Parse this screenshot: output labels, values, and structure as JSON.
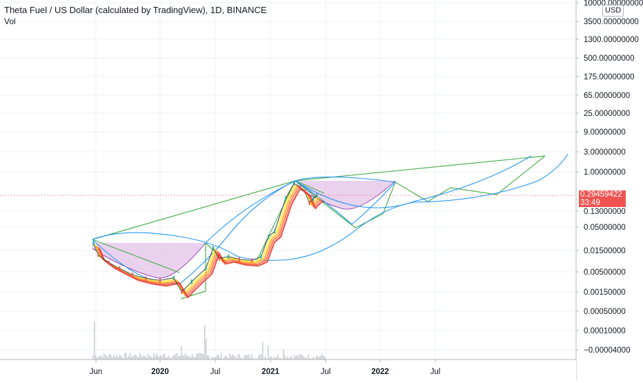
{
  "header": {
    "symbol_title": "Theta Fuel / US Dollar (calculated by TradingView), 1D, BINANCE",
    "volume_label": "Vol"
  },
  "price_scale": {
    "currency_button": "USD",
    "current_price": "0.29459422",
    "countdown": "33:49"
  },
  "colors": {
    "bull": "#26a69a",
    "bear": "#ef5350",
    "green_line": "#4caf50",
    "blue_arc": "#2196f3",
    "purple_fill": "#e1bee7",
    "volume": "#c9cbd1",
    "grid": "#eef0f4"
  },
  "chart_data": {
    "type": "line",
    "y_scale": "log",
    "x_axis_ticks": [
      "Jun",
      "2020",
      "Jul",
      "2021",
      "Jul",
      "2022",
      "Jul"
    ],
    "y_axis_ticks": [
      "10000.00000000",
      "3500.00000000",
      "1300.00000000",
      "500.00000000",
      "175.00000000",
      "65.00000000",
      "25.00000000",
      "9.00000000",
      "3.00000000",
      "1.00000000",
      "0.13000000",
      "0.05000000",
      "0.01500000",
      "0.00500000",
      "0.00150000",
      "0.00050000",
      "0.00010000",
      "−0.00004000"
    ],
    "last_price": 0.29459422,
    "series": [
      {
        "values": [
          [
            "2019-05-25",
            0.022
          ],
          [
            "2019-06-10",
            0.012
          ],
          [
            "2019-07-15",
            0.008
          ],
          [
            "2019-08-20",
            0.006
          ],
          [
            "2019-10-01",
            0.0042
          ],
          [
            "2019-11-15",
            0.0034
          ],
          [
            "2020-01-01",
            0.003
          ],
          [
            "2020-02-15",
            0.0035
          ],
          [
            "2020-03-13",
            0.0015
          ],
          [
            "2020-04-15",
            0.0028
          ],
          [
            "2020-06-01",
            0.006
          ],
          [
            "2020-06-25",
            0.017
          ],
          [
            "2020-07-15",
            0.01
          ],
          [
            "2020-08-15",
            0.011
          ],
          [
            "2020-09-20",
            0.0095
          ],
          [
            "2020-11-01",
            0.009
          ],
          [
            "2020-12-01",
            0.011
          ],
          [
            "2020-12-25",
            0.03
          ],
          [
            "2021-01-15",
            0.04
          ],
          [
            "2021-02-20",
            0.25
          ],
          [
            "2021-03-20",
            0.55
          ],
          [
            "2021-04-10",
            0.45
          ],
          [
            "2021-04-25",
            0.36
          ],
          [
            "2021-05-10",
            0.2
          ],
          [
            "2021-05-23",
            0.25
          ],
          [
            "2021-06-04",
            0.29459422
          ]
        ]
      }
    ]
  }
}
